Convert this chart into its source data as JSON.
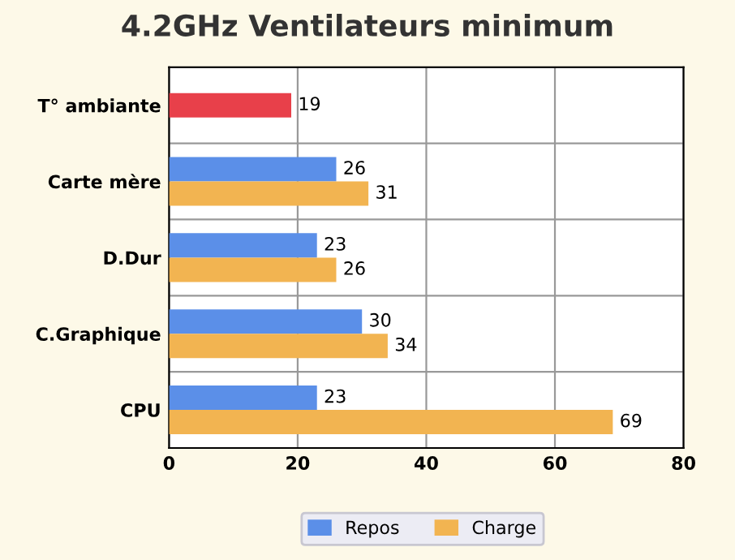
{
  "chart_data": {
    "type": "bar",
    "orientation": "horizontal",
    "title": "4.2GHz Ventilateurs minimum",
    "categories": [
      "T° ambiante",
      "Carte mère",
      "D.Dur",
      "C.Graphique",
      "CPU"
    ],
    "series": [
      {
        "name": "Repos",
        "color": "#5b8fe8",
        "colors": [
          "#e8404a",
          "#5b8fe8",
          "#5b8fe8",
          "#5b8fe8",
          "#5b8fe8"
        ],
        "values": [
          19,
          26,
          23,
          30,
          23
        ]
      },
      {
        "name": "Charge",
        "color": "#f2b451",
        "values": [
          null,
          31,
          26,
          34,
          69
        ]
      }
    ],
    "xlim": [
      0,
      80
    ],
    "xticks": [
      0,
      20,
      40,
      60,
      80
    ],
    "grid": true,
    "legend": "bottom",
    "data_labels": true
  }
}
